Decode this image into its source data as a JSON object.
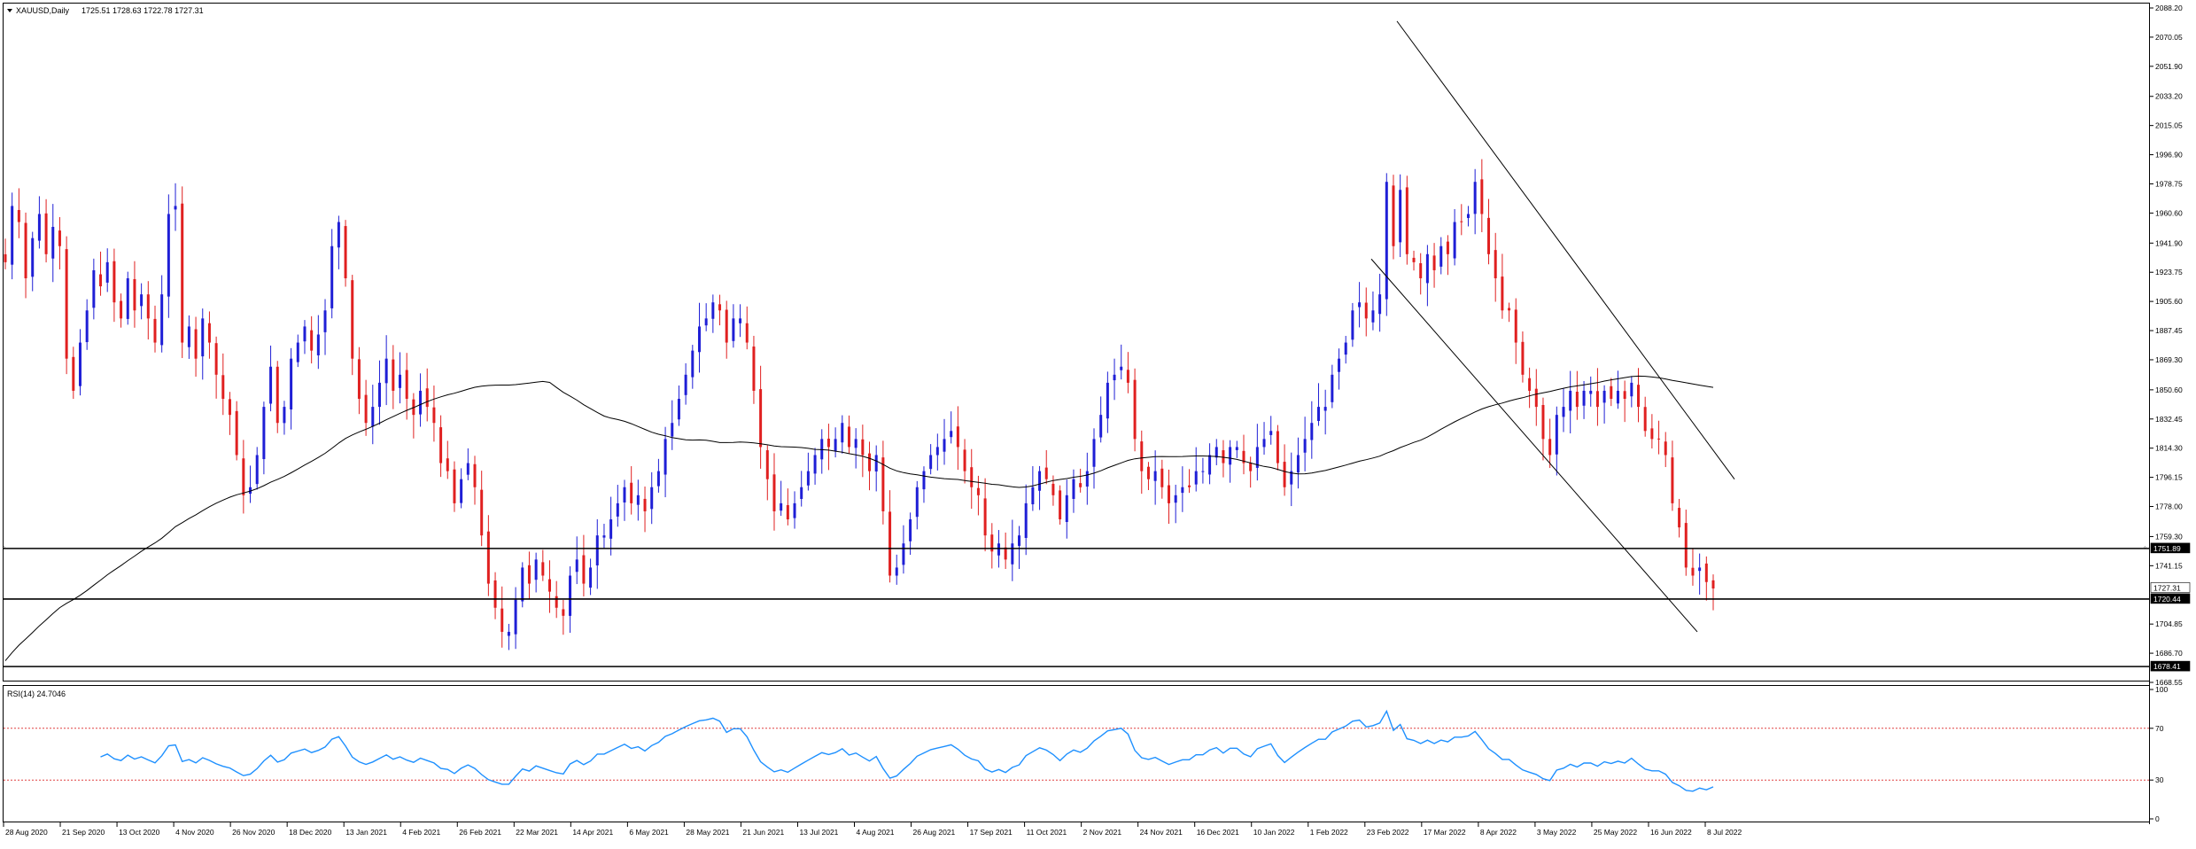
{
  "main_header": {
    "symbol": "XAUUSD,Daily",
    "ohlc": "1725.51 1728.63 1722.78 1727.31"
  },
  "rsi_header": {
    "label": "RSI(14) 24.7046"
  },
  "price_axis": {
    "ticks": [
      "2088.20",
      "2070.05",
      "2051.90",
      "2033.20",
      "2015.05",
      "1996.90",
      "1978.75",
      "1960.60",
      "1941.90",
      "1923.75",
      "1905.60",
      "1887.45",
      "1869.30",
      "1850.60",
      "1832.45",
      "1814.30",
      "1796.15",
      "1778.00",
      "1759.30",
      "1741.15",
      "1704.85",
      "1686.70",
      "1668.55"
    ]
  },
  "price_labels": {
    "hline_1": "1751.89",
    "current": "1727.31",
    "hline_2": "1720.44",
    "hline_3": "1678.41"
  },
  "rsi_axis": {
    "ticks": [
      "100",
      "70",
      "30",
      "0"
    ]
  },
  "date_axis": {
    "labels": [
      "28 Aug 2020",
      "21 Sep 2020",
      "13 Oct 2020",
      "4 Nov 2020",
      "26 Nov 2020",
      "18 Dec 2020",
      "13 Jan 2021",
      "4 Feb 2021",
      "26 Feb 2021",
      "22 Mar 2021",
      "14 Apr 2021",
      "6 May 2021",
      "28 May 2021",
      "21 Jun 2021",
      "13 Jul 2021",
      "4 Aug 2021",
      "26 Aug 2021",
      "17 Sep 2021",
      "11 Oct 2021",
      "2 Nov 2021",
      "24 Nov 2021",
      "16 Dec 2021",
      "10 Jan 2022",
      "1 Feb 2022",
      "23 Feb 2022",
      "17 Mar 2022",
      "8 Apr 2022",
      "3 May 2022",
      "25 May 2022",
      "16 Jun 2022",
      "8 Jul 2022"
    ]
  },
  "colors": {
    "bull": "#1f1fd6",
    "bear": "#e02020",
    "ma": "#000000",
    "rsi": "#1e90ff",
    "rsi_levels": "#e04040",
    "grid_text": "#000000"
  },
  "chart_data": [
    {
      "type": "candlestick",
      "symbol": "XAUUSD",
      "timeframe": "Daily",
      "ylim": [
        1668.55,
        2088.2
      ],
      "ohlc_last": {
        "open": 1725.51,
        "high": 1728.63,
        "low": 1722.78,
        "close": 1727.31
      },
      "horizontal_levels": [
        1751.89,
        1720.44,
        1678.41
      ],
      "closes": [
        1930,
        1965,
        1955,
        1920,
        1945,
        1960,
        1935,
        1952,
        1940,
        1870,
        1850,
        1880,
        1900,
        1925,
        1915,
        1930,
        1905,
        1895,
        1920,
        1900,
        1910,
        1895,
        1880,
        1910,
        1960,
        1965,
        1880,
        1890,
        1870,
        1895,
        1880,
        1860,
        1845,
        1835,
        1810,
        1785,
        1790,
        1810,
        1840,
        1865,
        1830,
        1840,
        1870,
        1880,
        1890,
        1875,
        1885,
        1900,
        1940,
        1955,
        1920,
        1870,
        1845,
        1830,
        1840,
        1855,
        1870,
        1850,
        1860,
        1845,
        1835,
        1850,
        1840,
        1830,
        1805,
        1800,
        1780,
        1795,
        1805,
        1790,
        1760,
        1730,
        1715,
        1700,
        1700,
        1720,
        1740,
        1730,
        1745,
        1735,
        1725,
        1715,
        1710,
        1735,
        1745,
        1730,
        1740,
        1760,
        1760,
        1770,
        1780,
        1790,
        1780,
        1785,
        1775,
        1790,
        1800,
        1820,
        1830,
        1845,
        1860,
        1875,
        1890,
        1895,
        1905,
        1900,
        1880,
        1895,
        1895,
        1880,
        1850,
        1815,
        1795,
        1775,
        1780,
        1770,
        1780,
        1790,
        1800,
        1810,
        1820,
        1815,
        1820,
        1830,
        1815,
        1820,
        1810,
        1800,
        1810,
        1775,
        1735,
        1740,
        1755,
        1770,
        1790,
        1800,
        1810,
        1815,
        1820,
        1825,
        1815,
        1800,
        1790,
        1785,
        1760,
        1750,
        1755,
        1745,
        1755,
        1760,
        1780,
        1790,
        1800,
        1795,
        1785,
        1770,
        1785,
        1795,
        1790,
        1800,
        1820,
        1835,
        1855,
        1860,
        1865,
        1855,
        1820,
        1800,
        1795,
        1800,
        1790,
        1780,
        1785,
        1790,
        1790,
        1800,
        1800,
        1810,
        1815,
        1805,
        1815,
        1815,
        1805,
        1800,
        1815,
        1820,
        1825,
        1805,
        1790,
        1800,
        1810,
        1820,
        1830,
        1840,
        1840,
        1860,
        1870,
        1880,
        1900,
        1905,
        1895,
        1900,
        1910,
        1980,
        1940,
        1975,
        1935,
        1930,
        1920,
        1935,
        1925,
        1940,
        1935,
        1955,
        1955,
        1960,
        1980,
        1960,
        1935,
        1920,
        1900,
        1900,
        1880,
        1860,
        1850,
        1840,
        1820,
        1810,
        1835,
        1840,
        1850,
        1840,
        1850,
        1850,
        1840,
        1850,
        1845,
        1850,
        1845,
        1855,
        1840,
        1825,
        1820,
        1820,
        1810,
        1780,
        1765,
        1740,
        1735,
        1740,
        1731,
        1727
      ]
    },
    {
      "type": "line",
      "name": "RSI(14)",
      "ylim": [
        0,
        100
      ],
      "levels": [
        70,
        30
      ],
      "last": 24.7046
    }
  ]
}
